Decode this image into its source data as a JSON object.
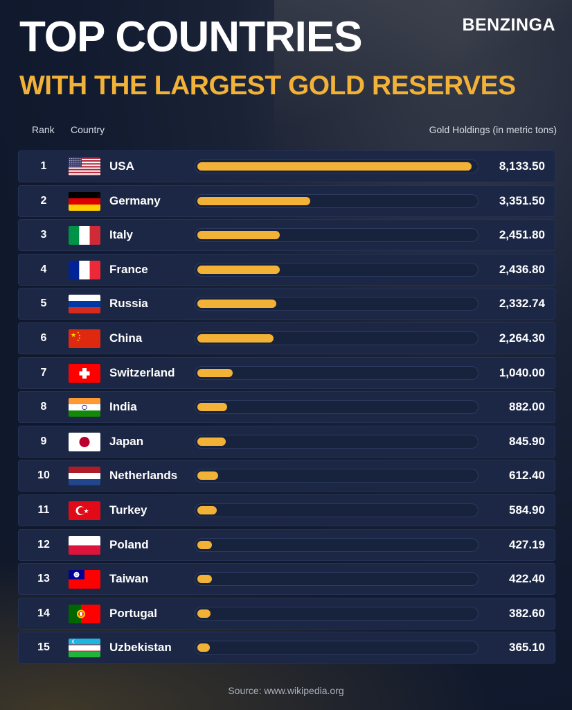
{
  "header": {
    "title": "TOP COUNTRIES",
    "subtitle": "WITH THE LARGEST GOLD RESERVES",
    "brand": "BENZINGA"
  },
  "columns": {
    "rank": "Rank",
    "country": "Country",
    "holdings": "Gold Holdings (in metric tons)"
  },
  "source": "Source: www.wikipedia.org",
  "colors": {
    "accent": "#f2b137",
    "row_bg": "#1c2745",
    "background": "#111a2e"
  },
  "chart_data": {
    "type": "bar",
    "orientation": "horizontal",
    "title": "TOP COUNTRIES WITH THE LARGEST GOLD RESERVES",
    "value_label": "Gold Holdings (in metric tons)",
    "xlim": [
      0,
      8300
    ],
    "rows": [
      {
        "rank": "1",
        "country": "USA",
        "flag": "usa-flag",
        "value": 8133.5,
        "value_label": "8,133.50"
      },
      {
        "rank": "2",
        "country": "Germany",
        "flag": "germany-flag",
        "value": 3351.5,
        "value_label": "3,351.50"
      },
      {
        "rank": "3",
        "country": "Italy",
        "flag": "italy-flag",
        "value": 2451.8,
        "value_label": "2,451.80"
      },
      {
        "rank": "4",
        "country": "France",
        "flag": "france-flag",
        "value": 2436.8,
        "value_label": "2,436.80"
      },
      {
        "rank": "5",
        "country": "Russia",
        "flag": "russia-flag",
        "value": 2332.74,
        "value_label": "2,332.74"
      },
      {
        "rank": "6",
        "country": "China",
        "flag": "china-flag",
        "value": 2264.3,
        "value_label": "2,264.30"
      },
      {
        "rank": "7",
        "country": "Switzerland",
        "flag": "switzerland-flag",
        "value": 1040.0,
        "value_label": "1,040.00"
      },
      {
        "rank": "8",
        "country": "India",
        "flag": "india-flag",
        "value": 882.0,
        "value_label": "882.00"
      },
      {
        "rank": "9",
        "country": "Japan",
        "flag": "japan-flag",
        "value": 845.9,
        "value_label": "845.90"
      },
      {
        "rank": "10",
        "country": "Netherlands",
        "flag": "netherlands-flag",
        "value": 612.4,
        "value_label": "612.40"
      },
      {
        "rank": "11",
        "country": "Turkey",
        "flag": "turkey-flag",
        "value": 584.9,
        "value_label": "584.90"
      },
      {
        "rank": "12",
        "country": "Poland",
        "flag": "poland-flag",
        "value": 427.19,
        "value_label": "427.19"
      },
      {
        "rank": "13",
        "country": "Taiwan",
        "flag": "taiwan-flag",
        "value": 422.4,
        "value_label": "422.40"
      },
      {
        "rank": "14",
        "country": "Portugal",
        "flag": "portugal-flag",
        "value": 382.6,
        "value_label": "382.60"
      },
      {
        "rank": "15",
        "country": "Uzbekistan",
        "flag": "uzbekistan-flag",
        "value": 365.1,
        "value_label": "365.10"
      }
    ]
  }
}
